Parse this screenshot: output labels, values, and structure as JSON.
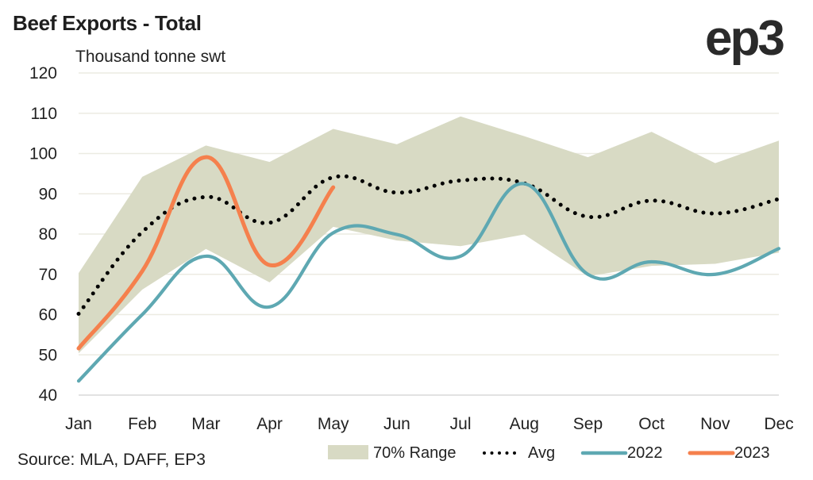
{
  "chart_data": {
    "type": "line",
    "title": "Beef Exports - Total",
    "ylabel": "Thousand tonne swt",
    "xlabel": "",
    "brand": "ep3",
    "source": "Source: MLA, DAFF, EP3",
    "categories": [
      "Jan",
      "Feb",
      "Mar",
      "Apr",
      "May",
      "Jun",
      "Jul",
      "Aug",
      "Sep",
      "Oct",
      "Nov",
      "Dec"
    ],
    "ylim": [
      40,
      120
    ],
    "yticks": [
      40,
      50,
      60,
      70,
      80,
      90,
      100,
      110,
      120
    ],
    "grid": true,
    "legend_position": "bottom-right",
    "range": {
      "name": "70% Range",
      "color": "#d8dac4",
      "upper": [
        70.3,
        94.2,
        102.0,
        97.9,
        106.1,
        102.3,
        109.2,
        104.3,
        99.1,
        105.4,
        97.6,
        103.2
      ],
      "lower": [
        50.4,
        66.2,
        76.3,
        68.0,
        81.8,
        78.4,
        77.0,
        79.9,
        69.5,
        72.1,
        72.6,
        75.4
      ]
    },
    "series": [
      {
        "name": "Avg",
        "style": "dotted",
        "color": "#000000",
        "values": [
          60.2,
          80.5,
          89.2,
          82.8,
          94.1,
          90.3,
          93.3,
          92.6,
          84.3,
          88.3,
          85.1,
          88.7
        ]
      },
      {
        "name": "2022",
        "style": "solid",
        "color": "#5ea8b2",
        "values": [
          43.5,
          60.0,
          74.5,
          61.9,
          80.3,
          79.9,
          74.5,
          92.5,
          70.0,
          73.1,
          70.0,
          76.4
        ]
      },
      {
        "name": "2023",
        "style": "solid",
        "color": "#f5804d",
        "values": [
          51.6,
          70.8,
          99.1,
          72.3,
          91.6
        ]
      }
    ]
  }
}
